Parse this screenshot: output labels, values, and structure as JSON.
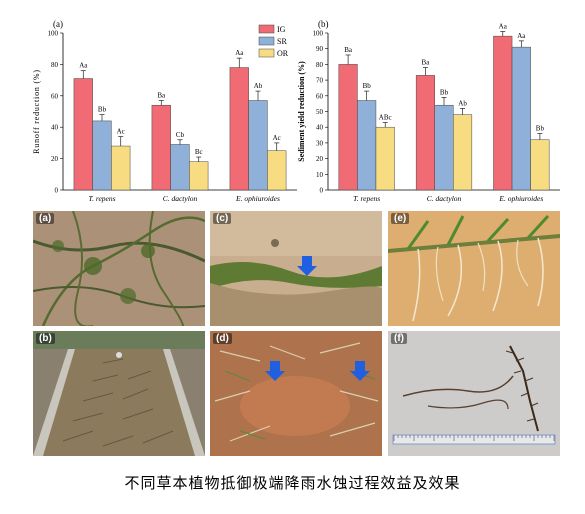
{
  "chart_data": [
    {
      "type": "bar",
      "panel_label": "(a)",
      "ylabel": "Runoff reduction (%)",
      "categories": [
        "T. repens",
        "C. dactylon",
        "E. ophiuroides"
      ],
      "ylim": [
        0,
        100
      ],
      "yticks": [
        0,
        20,
        40,
        60,
        80,
        100
      ],
      "legend_position": "top-right",
      "series": [
        {
          "name": "IG",
          "color": "#f06b74",
          "values": [
            71,
            54,
            78
          ],
          "errors": [
            5,
            3,
            6
          ],
          "letters": [
            "Aa",
            "Ba",
            "Aa"
          ]
        },
        {
          "name": "SR",
          "color": "#8fb0d8",
          "values": [
            44,
            29,
            57
          ],
          "errors": [
            4,
            3,
            6
          ],
          "letters": [
            "Bb",
            "Cb",
            "Ab"
          ]
        },
        {
          "name": "OR",
          "color": "#f8dc82",
          "values": [
            28,
            18,
            25
          ],
          "errors": [
            6,
            3,
            5
          ],
          "letters": [
            "Ac",
            "Bc",
            "Ac"
          ]
        }
      ]
    },
    {
      "type": "bar",
      "panel_label": "(b)",
      "ylabel": "Sediment yield reduction (%)",
      "categories": [
        "T. repens",
        "C. dactylon",
        "E. ophiuroides"
      ],
      "ylim": [
        0,
        100
      ],
      "yticks": [
        0,
        10,
        20,
        30,
        40,
        50,
        60,
        70,
        80,
        90,
        100
      ],
      "series": [
        {
          "name": "IG",
          "color": "#f06b74",
          "values": [
            80,
            73,
            98
          ],
          "errors": [
            6,
            5,
            3
          ],
          "letters": [
            "Ba",
            "Ba",
            "Aa"
          ]
        },
        {
          "name": "SR",
          "color": "#8fb0d8",
          "values": [
            57,
            54,
            91
          ],
          "errors": [
            6,
            5,
            4
          ],
          "letters": [
            "Bb",
            "Bb",
            "Aa"
          ]
        },
        {
          "name": "OR",
          "color": "#f8dc82",
          "values": [
            40,
            48,
            32
          ],
          "errors": [
            3,
            4,
            4
          ],
          "letters": [
            "ABc",
            "Ab",
            "Bb"
          ]
        }
      ]
    }
  ],
  "photos": [
    {
      "label": "(a)",
      "content": "grass-stolons-on-soil"
    },
    {
      "label": "(c)",
      "content": "grass-edge-erosion"
    },
    {
      "label": "(e)",
      "content": "stolon-roots-closeup"
    },
    {
      "label": "(b)",
      "content": "plot-channel-with-grass"
    },
    {
      "label": "(d)",
      "content": "red-soil-with-stems"
    },
    {
      "label": "(f)",
      "content": "excavated-roots-with-ruler"
    }
  ],
  "caption": "不同草本植物抵御极端降雨水蚀过程效益及效果"
}
